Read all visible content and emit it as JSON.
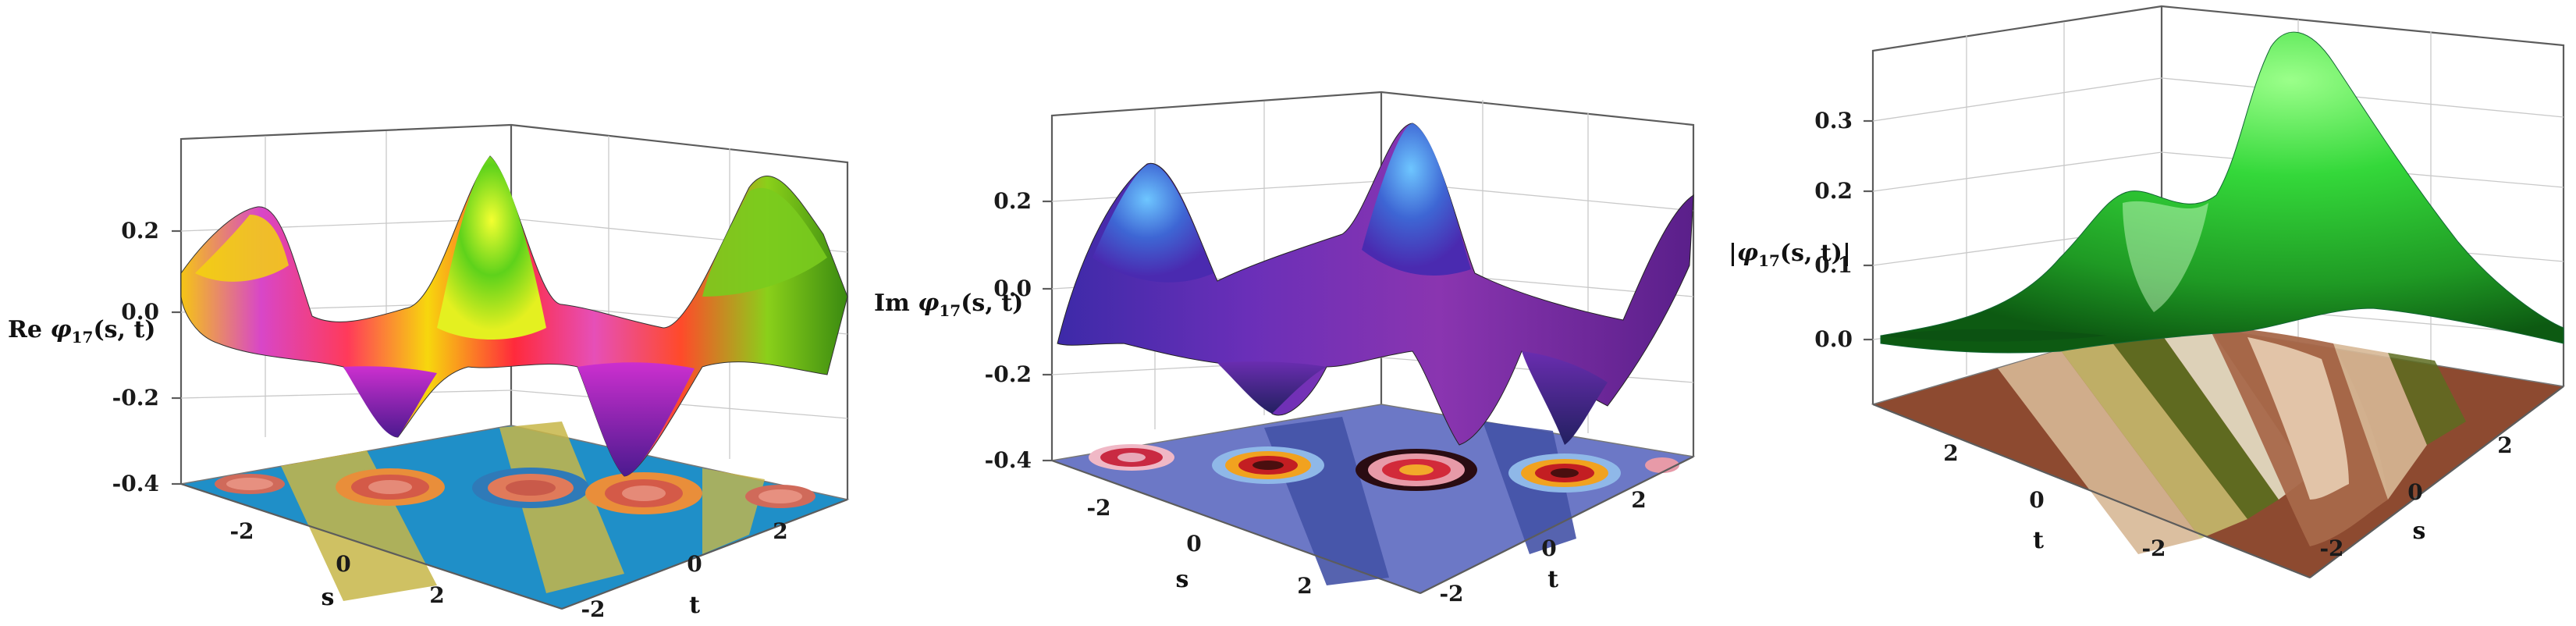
{
  "chart_data": [
    {
      "type": "surface3d",
      "zlabel": "Re φ17(s, t)",
      "zlabel_parts": {
        "prefix": "Re ",
        "symbol": "φ",
        "sub": "17",
        "args": "(s, t)"
      },
      "xlabel": "s",
      "ylabel": "t",
      "zlim": [
        -0.4,
        0.35
      ],
      "z_ticks": [
        "0.2",
        "0.0",
        "-0.2",
        "-0.4"
      ],
      "s_ticks": [
        "-2",
        "0",
        "2"
      ],
      "t_ticks": [
        "-2",
        "0",
        "2"
      ],
      "style": "rainbow-hue surface with filled contour projection on the floor",
      "colors": {
        "floor_bg": "#1a86c2",
        "floor_band": "#c9b64a",
        "contour_hot": "#e2705a"
      },
      "peaks": [
        0.22,
        0.3,
        0.3
      ],
      "troughs": [
        -0.28,
        -0.31
      ]
    },
    {
      "type": "surface3d",
      "zlabel": "Im φ17(s, t)",
      "zlabel_parts": {
        "prefix": "Im ",
        "symbol": "φ",
        "sub": "17",
        "args": "(s, t)"
      },
      "xlabel": "s",
      "ylabel": "t",
      "zlim": [
        -0.4,
        0.35
      ],
      "z_ticks": [
        "0.2",
        "0.0",
        "-0.2",
        "-0.4"
      ],
      "s_ticks": [
        "-2",
        "0",
        "2"
      ],
      "t_ticks": [
        "-2",
        "0",
        "2"
      ],
      "style": "blue-purple surface with filled contour projection on the floor",
      "colors": {
        "floor_bg": "#6b76c4",
        "floor_dark": "#4a56a8",
        "ring_dark": "#3b0c0c",
        "ring_pink": "#e79aa8"
      },
      "peaks": [
        0.26,
        0.3
      ],
      "troughs": [
        -0.29,
        -0.31
      ]
    },
    {
      "type": "surface3d",
      "zlabel": "|φ17(s, t)|",
      "zlabel_parts": {
        "prefix": "|",
        "symbol": "φ",
        "sub": "17",
        "args": "(s, t)|"
      },
      "xlabel": "s",
      "ylabel": "t",
      "zlim": [
        -0.05,
        0.38
      ],
      "z_ticks": [
        "0.3",
        "0.2",
        "0.1",
        "0.0"
      ],
      "s_ticks": [
        "-2",
        "0",
        "2"
      ],
      "t_ticks": [
        "2",
        "0",
        "-2"
      ],
      "style": "green single-peak surface with brown/olive contour projection on the floor",
      "colors": {
        "surface": "#2fd23a",
        "floor_bg": "#8c4a32",
        "floor_tan": "#d7b89a",
        "floor_olive": "#5c6b1f"
      },
      "peaks": [
        0.37
      ]
    }
  ]
}
